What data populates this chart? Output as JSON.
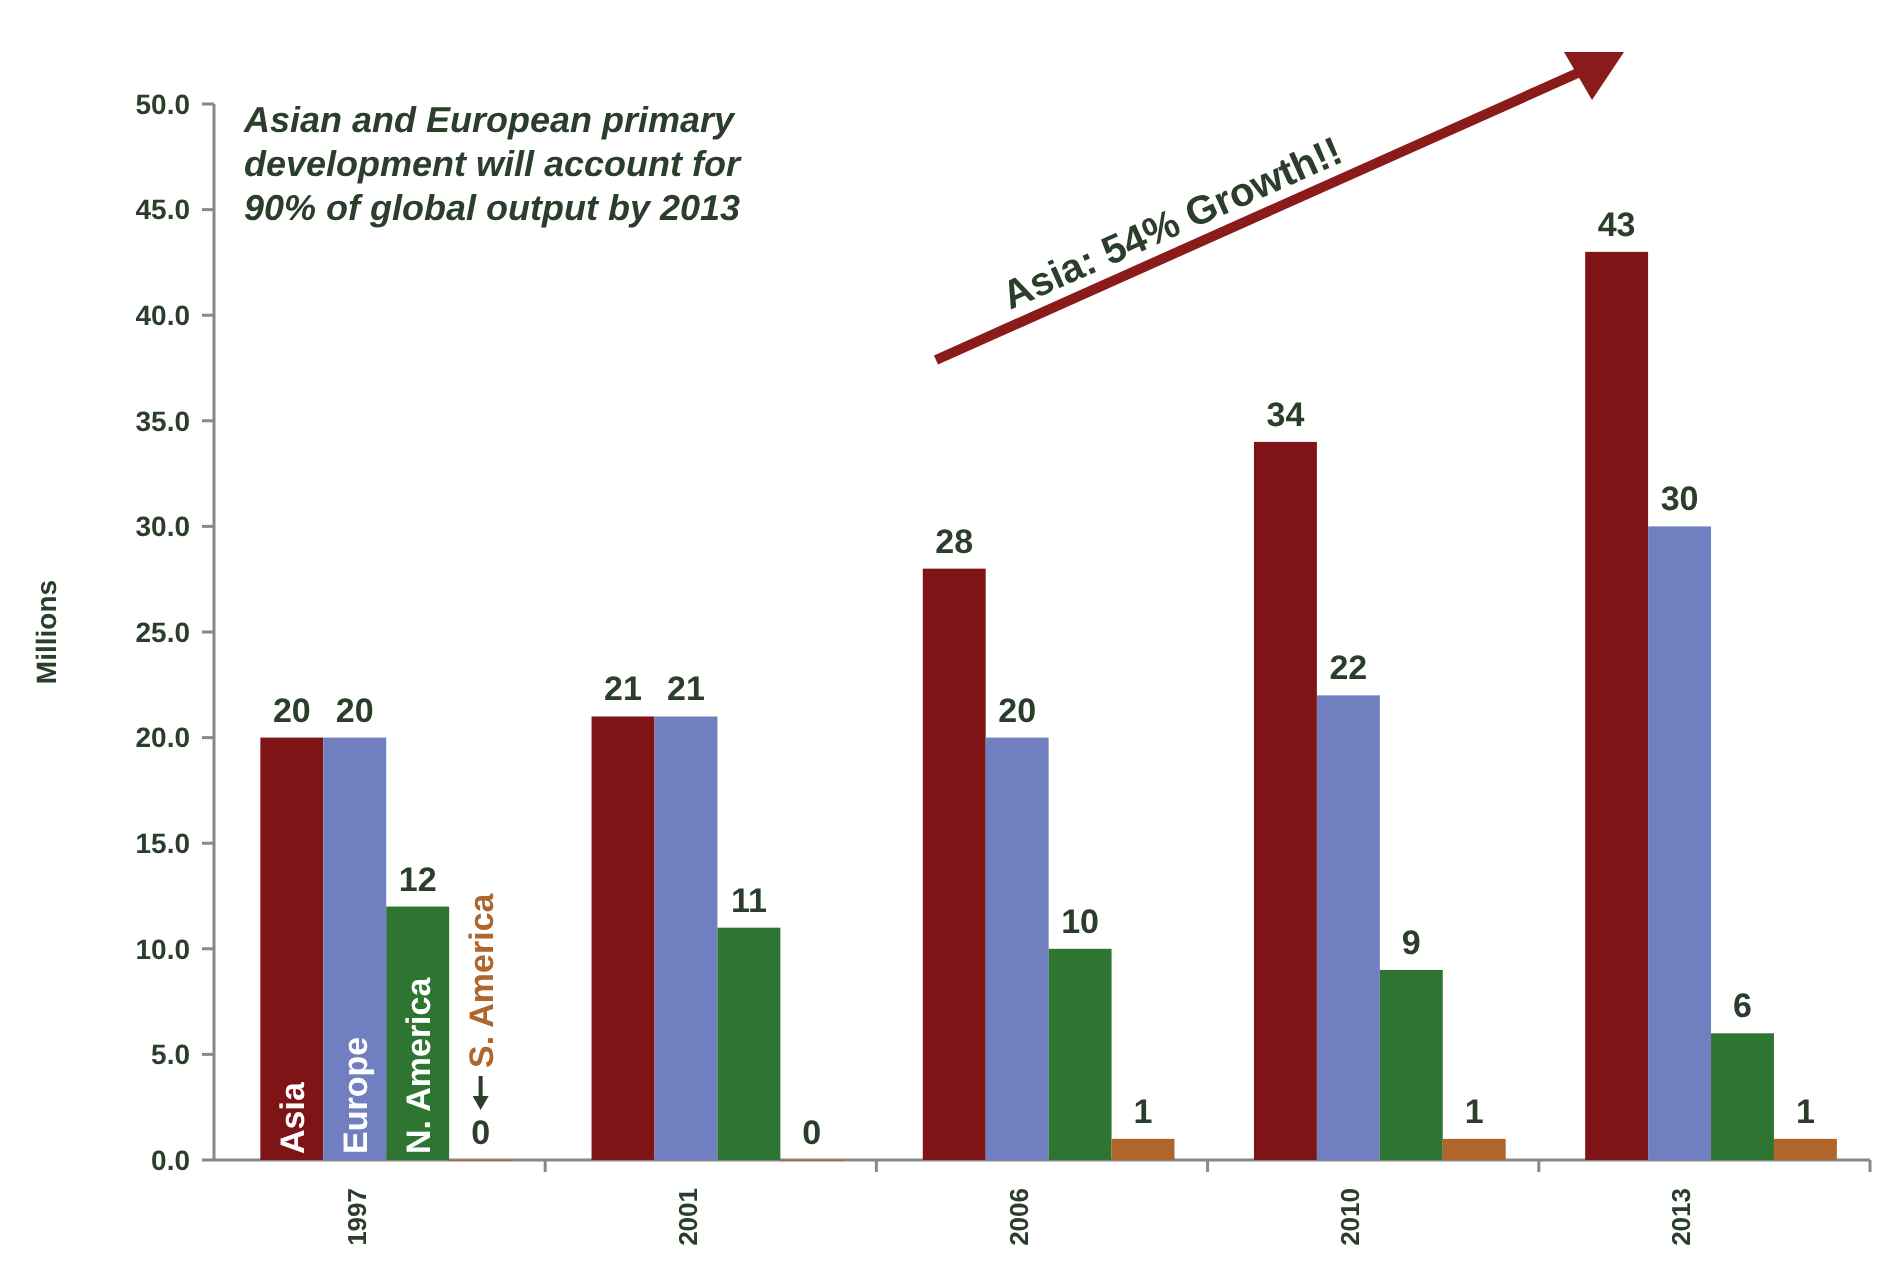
{
  "chart_data": {
    "type": "bar",
    "ylabel": "Millions",
    "categories": [
      "1997",
      "2001",
      "2006",
      "2010",
      "2013"
    ],
    "series": [
      {
        "name": "Asia",
        "color": "#7f1416",
        "values": [
          20,
          21,
          28,
          34,
          43
        ]
      },
      {
        "name": "Europe",
        "color": "#6f7fc0",
        "values": [
          20,
          21,
          20,
          22,
          30
        ]
      },
      {
        "name": "N. America",
        "color": "#2e7532",
        "values": [
          12,
          11,
          10,
          9,
          6
        ]
      },
      {
        "name": "S. America",
        "color": "#b0652a",
        "values": [
          0,
          0,
          1,
          1,
          1
        ]
      }
    ],
    "data_labels": true,
    "ylim": [
      0,
      50
    ],
    "yticks": [
      {
        "value": 0,
        "label": "0.0"
      },
      {
        "value": 5,
        "label": "5.0"
      },
      {
        "value": 10,
        "label": "10.0"
      },
      {
        "value": 15,
        "label": "15.0"
      },
      {
        "value": 20,
        "label": "20.0"
      },
      {
        "value": 25,
        "label": "25.0"
      },
      {
        "value": 30,
        "label": "30.0"
      },
      {
        "value": 35,
        "label": "35.0"
      },
      {
        "value": 40,
        "label": "40.0"
      },
      {
        "value": 45,
        "label": "45.0"
      },
      {
        "value": 50,
        "label": "50.0"
      }
    ],
    "grid": false,
    "annotations": [
      "Asian and European primary development will account for 90% of global output by 2013",
      "Asia: 54% Growth!!"
    ]
  }
}
